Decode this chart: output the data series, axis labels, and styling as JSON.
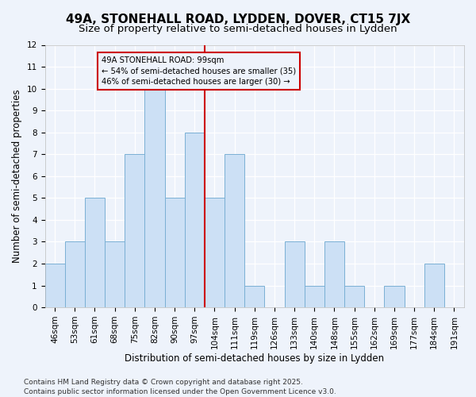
{
  "title": "49A, STONEHALL ROAD, LYDDEN, DOVER, CT15 7JX",
  "subtitle": "Size of property relative to semi-detached houses in Lydden",
  "xlabel": "Distribution of semi-detached houses by size in Lydden",
  "ylabel": "Number of semi-detached properties",
  "categories": [
    "46sqm",
    "53sqm",
    "61sqm",
    "68sqm",
    "75sqm",
    "82sqm",
    "90sqm",
    "97sqm",
    "104sqm",
    "111sqm",
    "119sqm",
    "126sqm",
    "133sqm",
    "140sqm",
    "148sqm",
    "155sqm",
    "162sqm",
    "169sqm",
    "177sqm",
    "184sqm",
    "191sqm"
  ],
  "values": [
    2,
    3,
    5,
    3,
    7,
    10,
    5,
    8,
    5,
    7,
    1,
    0,
    3,
    1,
    3,
    1,
    0,
    1,
    0,
    2,
    0
  ],
  "bar_color": "#cce0f5",
  "bar_edge_color": "#7ab0d4",
  "ref_line_x": 7.5,
  "ref_line_color": "#cc0000",
  "annotation_title": "49A STONEHALL ROAD: 99sqm",
  "annotation_line1": "← 54% of semi-detached houses are smaller (35)",
  "annotation_line2": "46% of semi-detached houses are larger (30) →",
  "annotation_box_color": "#cc0000",
  "ylim": [
    0,
    12
  ],
  "yticks": [
    0,
    1,
    2,
    3,
    4,
    5,
    6,
    7,
    8,
    9,
    10,
    11,
    12
  ],
  "footer1": "Contains HM Land Registry data © Crown copyright and database right 2025.",
  "footer2": "Contains public sector information licensed under the Open Government Licence v3.0.",
  "bg_color": "#eef3fb",
  "grid_color": "#ffffff",
  "title_fontsize": 11,
  "subtitle_fontsize": 9.5,
  "axis_label_fontsize": 8.5,
  "tick_fontsize": 7.5,
  "footer_fontsize": 6.5
}
